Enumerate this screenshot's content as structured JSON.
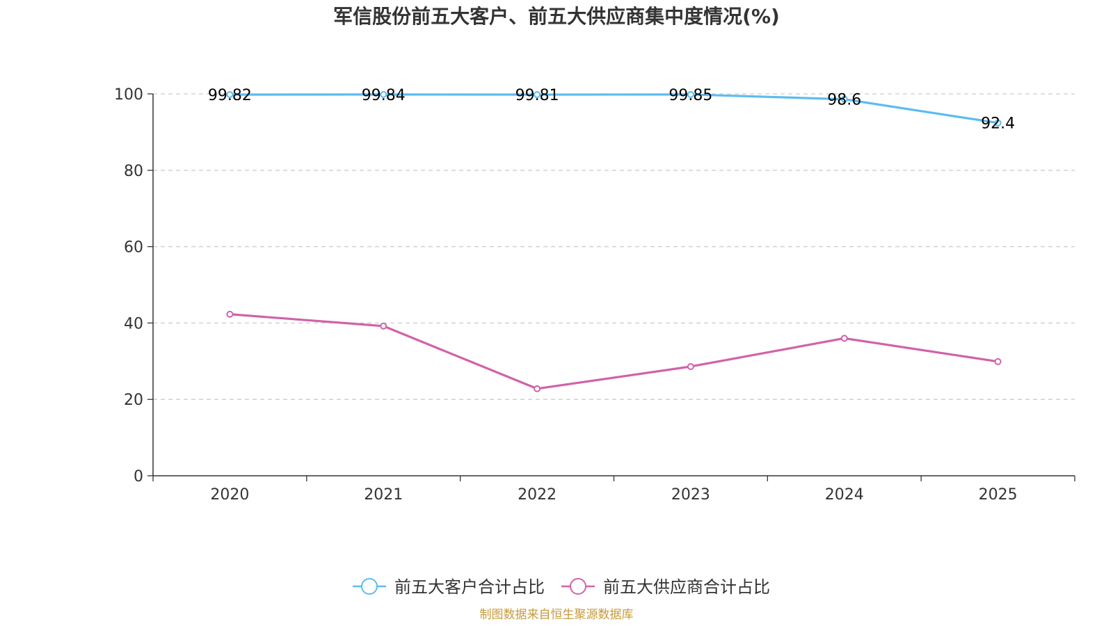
{
  "chart_data": {
    "type": "line",
    "title": "军信股份前五大客户、前五大供应商集中度情况(%)",
    "categories": [
      "2020",
      "2021",
      "2022",
      "2023",
      "2024",
      "2025"
    ],
    "ylim": [
      0,
      100
    ],
    "yticks": [
      "0",
      "20",
      "40",
      "60",
      "80",
      "100"
    ],
    "grid": true,
    "legend_position": "bottom",
    "series": [
      {
        "name": "前五大客户合计占比",
        "color": "#5bbcef",
        "values": [
          99.82,
          99.84,
          99.81,
          99.85,
          98.6,
          92.4
        ],
        "labels": [
          "99.82",
          "99.84",
          "99.81",
          "99.85",
          "98.6",
          "92.4"
        ]
      },
      {
        "name": "前五大供应商合计占比",
        "color": "#d063a8",
        "values": [
          42.3,
          39.2,
          22.8,
          28.6,
          36.0,
          29.9
        ],
        "labels": []
      }
    ]
  },
  "source": {
    "text": "制图数据来自恒生聚源数据库",
    "color": "#c79a3a"
  }
}
